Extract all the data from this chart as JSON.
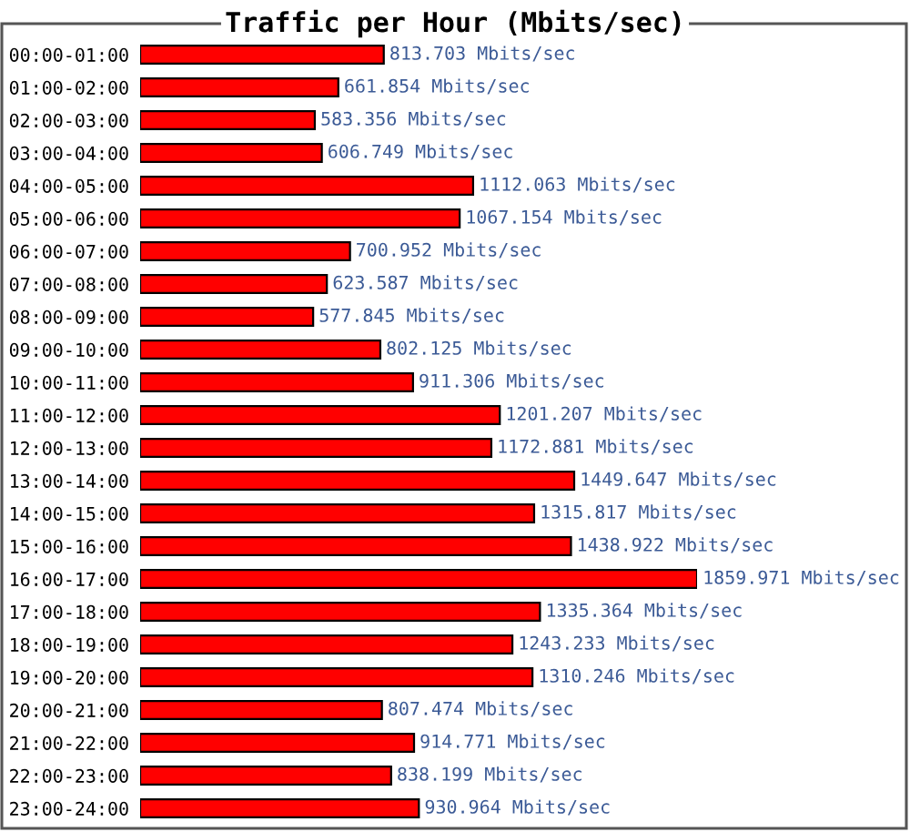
{
  "chart_data": {
    "type": "bar",
    "orientation": "horizontal",
    "title": "Traffic per Hour (Mbits/sec)",
    "categories": [
      "00:00-01:00",
      "01:00-02:00",
      "02:00-03:00",
      "03:00-04:00",
      "04:00-05:00",
      "05:00-06:00",
      "06:00-07:00",
      "07:00-08:00",
      "08:00-09:00",
      "09:00-10:00",
      "10:00-11:00",
      "11:00-12:00",
      "12:00-13:00",
      "13:00-14:00",
      "14:00-15:00",
      "15:00-16:00",
      "16:00-17:00",
      "17:00-18:00",
      "18:00-19:00",
      "19:00-20:00",
      "20:00-21:00",
      "21:00-22:00",
      "22:00-23:00",
      "23:00-24:00"
    ],
    "values": [
      813.703,
      661.854,
      583.356,
      606.749,
      1112.063,
      1067.154,
      700.952,
      623.587,
      577.845,
      802.125,
      911.306,
      1201.207,
      1172.881,
      1449.647,
      1315.817,
      1438.922,
      1859.971,
      1335.364,
      1243.233,
      1310.246,
      807.474,
      914.771,
      838.199,
      930.964
    ],
    "value_labels": [
      "813.703 Mbits/sec",
      "661.854 Mbits/sec",
      "583.356 Mbits/sec",
      "606.749 Mbits/sec",
      "1112.063 Mbits/sec",
      "1067.154 Mbits/sec",
      "700.952 Mbits/sec",
      "623.587 Mbits/sec",
      "577.845 Mbits/sec",
      "802.125 Mbits/sec",
      "911.306 Mbits/sec",
      "1201.207 Mbits/sec",
      "1172.881 Mbits/sec",
      "1449.647 Mbits/sec",
      "1315.817 Mbits/sec",
      "1438.922 Mbits/sec",
      "1859.971 Mbits/sec",
      "1335.364 Mbits/sec",
      "1243.233 Mbits/sec",
      "1310.246 Mbits/sec",
      "807.474 Mbits/sec",
      "914.771 Mbits/sec",
      "838.199 Mbits/sec",
      "930.964 Mbits/sec"
    ],
    "color": "#ff0000",
    "tick_labels": "y"
  }
}
